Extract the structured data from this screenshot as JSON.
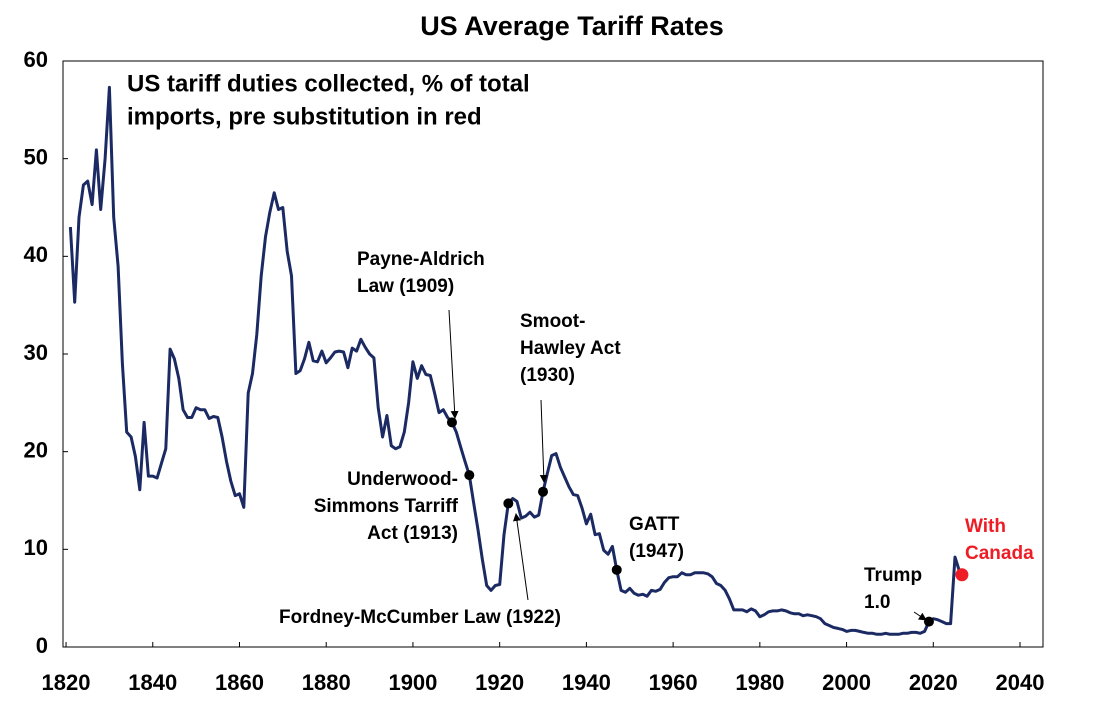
{
  "chart_data": {
    "type": "line",
    "title": "US Average Tariff Rates",
    "subtitle": [
      "US tariff duties collected, % of total",
      "imports, pre substitution in red"
    ],
    "x": [
      1821,
      1822,
      1823,
      1824,
      1825,
      1826,
      1827,
      1828,
      1829,
      1830,
      1831,
      1832,
      1833,
      1834,
      1835,
      1836,
      1837,
      1838,
      1839,
      1840,
      1841,
      1842,
      1843,
      1844,
      1845,
      1846,
      1847,
      1848,
      1849,
      1850,
      1851,
      1852,
      1853,
      1854,
      1855,
      1856,
      1857,
      1858,
      1859,
      1860,
      1861,
      1862,
      1863,
      1864,
      1865,
      1866,
      1867,
      1868,
      1869,
      1870,
      1871,
      1872,
      1873,
      1874,
      1875,
      1876,
      1877,
      1878,
      1879,
      1880,
      1881,
      1882,
      1883,
      1884,
      1885,
      1886,
      1887,
      1888,
      1889,
      1890,
      1891,
      1892,
      1893,
      1894,
      1895,
      1896,
      1897,
      1898,
      1899,
      1900,
      1901,
      1902,
      1903,
      1904,
      1905,
      1906,
      1907,
      1908,
      1909,
      1910,
      1911,
      1912,
      1913,
      1914,
      1915,
      1916,
      1917,
      1918,
      1919,
      1920,
      1921,
      1922,
      1923,
      1924,
      1925,
      1926,
      1927,
      1928,
      1929,
      1930,
      1931,
      1932,
      1933,
      1934,
      1935,
      1936,
      1937,
      1938,
      1939,
      1940,
      1941,
      1942,
      1943,
      1944,
      1945,
      1946,
      1947,
      1948,
      1949,
      1950,
      1951,
      1952,
      1953,
      1954,
      1955,
      1956,
      1957,
      1958,
      1959,
      1960,
      1961,
      1962,
      1963,
      1964,
      1965,
      1966,
      1967,
      1968,
      1969,
      1970,
      1971,
      1972,
      1973,
      1974,
      1975,
      1976,
      1977,
      1978,
      1979,
      1980,
      1981,
      1982,
      1983,
      1984,
      1985,
      1986,
      1987,
      1988,
      1989,
      1990,
      1991,
      1992,
      1993,
      1994,
      1995,
      1996,
      1997,
      1998,
      1999,
      2000,
      2001,
      2002,
      2003,
      2004,
      2005,
      2006,
      2007,
      2008,
      2009,
      2010,
      2011,
      2012,
      2013,
      2014,
      2015,
      2016,
      2017,
      2018,
      2019,
      2020,
      2021,
      2022,
      2023,
      2024,
      2025,
      2026
    ],
    "series": [
      {
        "color": "#1b2a63",
        "values": [
          43,
          35.3,
          44,
          47.3,
          47.7,
          45.3,
          50.9,
          44.8,
          50,
          57.3,
          44,
          39,
          29,
          22,
          21.5,
          19.5,
          16.1,
          23,
          17.5,
          17.5,
          17.3,
          18.8,
          20.3,
          30.5,
          29.5,
          27.5,
          24.3,
          23.5,
          23.5,
          24.5,
          24.3,
          24.3,
          23.4,
          23.6,
          23.5,
          21.5,
          19,
          17,
          15.5,
          15.7,
          14.3,
          26,
          28,
          32,
          38,
          42,
          44.5,
          46.5,
          44.8,
          45,
          40.5,
          38,
          28,
          28.3,
          29.5,
          31.2,
          29.3,
          29.2,
          30.3,
          29.1,
          29.6,
          30.2,
          30.3,
          30.2,
          28.6,
          30.6,
          30.3,
          31.5,
          30.7,
          30,
          29.6,
          24.5,
          21.5,
          23.7,
          20.6,
          20.3,
          20.5,
          22,
          25,
          29.2,
          27.5,
          28.8,
          27.9,
          27.8,
          26,
          24,
          24.3,
          23.5,
          23,
          22,
          20.5,
          19,
          17.6,
          14.8,
          12,
          9,
          6.3,
          5.8,
          6.3,
          6.4,
          11.5,
          14.7,
          15.2,
          14.9,
          13.2,
          13.4,
          13.8,
          13.3,
          13.5,
          15.9,
          17.8,
          19.6,
          19.8,
          18.4,
          17.4,
          16.4,
          15.6,
          15.5,
          14.2,
          12.6,
          13.6,
          11.5,
          11.6,
          9.9,
          9.5,
          10.3,
          7.9,
          5.8,
          5.6,
          6,
          5.5,
          5.3,
          5.4,
          5.2,
          5.8,
          5.7,
          5.9,
          6.6,
          7.1,
          7.2,
          7.2,
          7.6,
          7.4,
          7.4,
          7.6,
          7.6,
          7.6,
          7.5,
          7.2,
          6.5,
          6.3,
          5.8,
          4.9,
          3.8,
          3.8,
          3.8,
          3.6,
          3.9,
          3.7,
          3.1,
          3.3,
          3.6,
          3.7,
          3.7,
          3.8,
          3.7,
          3.5,
          3.4,
          3.4,
          3.2,
          3.3,
          3.2,
          3.1,
          2.9,
          2.4,
          2.2,
          2,
          1.9,
          1.8,
          1.6,
          1.7,
          1.7,
          1.6,
          1.5,
          1.4,
          1.4,
          1.3,
          1.3,
          1.4,
          1.3,
          1.3,
          1.3,
          1.4,
          1.4,
          1.5,
          1.5,
          1.4,
          1.6,
          2.6,
          2.9,
          2.8,
          2.6,
          2.4,
          2.4,
          9.2,
          7.8
        ]
      }
    ],
    "annotations": [
      {
        "lines": [
          "Payne-Aldrich",
          "Law (1909)"
        ],
        "x": 1909,
        "y": 23,
        "color": "#000000"
      },
      {
        "lines": [
          "Underwood-",
          "Simmons Tarriff",
          "Act (1913)"
        ],
        "x": 1913,
        "y": 17.6,
        "color": "#000000"
      },
      {
        "lines": [
          "Fordney-McCumber Law (1922)"
        ],
        "x": 1922,
        "y": 14.7,
        "color": "#000000"
      },
      {
        "lines": [
          "Smoot-",
          "Hawley Act",
          "(1930)"
        ],
        "x": 1930,
        "y": 15.9,
        "color": "#000000"
      },
      {
        "lines": [
          "GATT",
          "(1947)"
        ],
        "x": 1947,
        "y": 7.9,
        "color": "#000000"
      },
      {
        "lines": [
          "Trump",
          "1.0"
        ],
        "x": 2019,
        "y": 2.6,
        "color": "#000000"
      },
      {
        "lines": [
          "With",
          "Canada"
        ],
        "x": 2026.6,
        "y": 7.4,
        "color": "#ee1c25"
      }
    ],
    "xlim": [
      1819.3,
      2045.3
    ],
    "ylim": [
      0,
      60
    ],
    "xticks": [
      1820,
      1840,
      1860,
      1880,
      1900,
      1920,
      1940,
      1960,
      1980,
      2000,
      2020,
      2040
    ],
    "yticks": [
      0,
      10,
      20,
      30,
      40,
      50,
      60
    ]
  }
}
